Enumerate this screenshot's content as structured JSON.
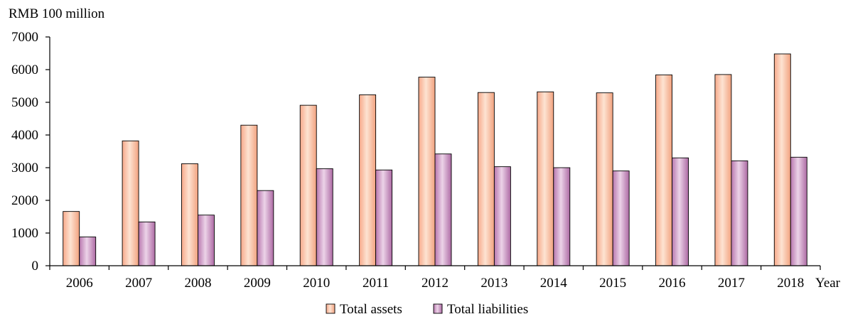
{
  "chart_data": {
    "type": "bar",
    "title": "",
    "ylabel": "RMB 100 million",
    "xlabel": "Year",
    "ylim": [
      0,
      7000
    ],
    "y_ticks": [
      0,
      1000,
      2000,
      3000,
      4000,
      5000,
      6000,
      7000
    ],
    "grid": false,
    "legend_position": "bottom",
    "categories": [
      "2006",
      "2007",
      "2008",
      "2009",
      "2010",
      "2011",
      "2012",
      "2013",
      "2014",
      "2015",
      "2016",
      "2017",
      "2018"
    ],
    "series": [
      {
        "name": "Total assets",
        "color": "#f6b895",
        "values": [
          1660,
          3820,
          3120,
          4300,
          4910,
          5230,
          5770,
          5300,
          5320,
          5290,
          5840,
          5850,
          6480
        ]
      },
      {
        "name": "Total liabilities",
        "color": "#c98bc2",
        "values": [
          880,
          1340,
          1550,
          2300,
          2970,
          2930,
          3420,
          3030,
          3000,
          2900,
          3300,
          3210,
          3320
        ]
      }
    ]
  }
}
